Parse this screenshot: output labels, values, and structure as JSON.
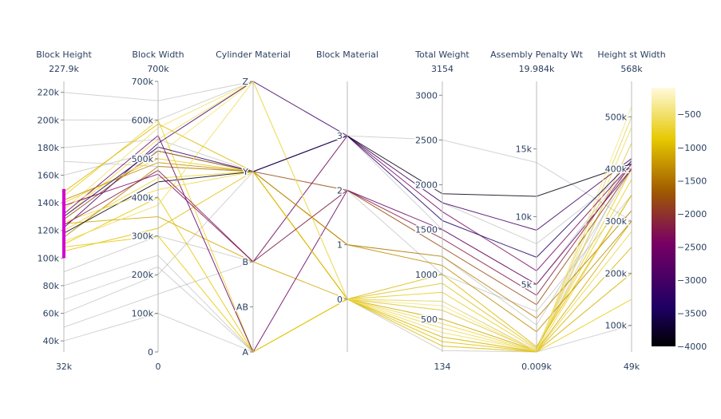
{
  "chart_data": {
    "type": "parallel-coordinates",
    "dimensions": [
      {
        "label": "Block Height",
        "range": [
          32000,
          227900
        ],
        "max_label": "227.9k",
        "min_label": "32k",
        "ticks": [
          40000,
          60000,
          80000,
          100000,
          120000,
          140000,
          160000,
          180000,
          200000,
          220000
        ],
        "tick_labels": [
          "40k",
          "60k",
          "80k",
          "100k",
          "120k",
          "140k",
          "160k",
          "180k",
          "200k",
          "220k"
        ],
        "constraint": [
          100000,
          150000
        ]
      },
      {
        "label": "Block Width",
        "range": [
          0,
          700000
        ],
        "max_label": "700k",
        "min_label": "0",
        "ticks": [
          0,
          100000,
          200000,
          300000,
          400000,
          500000,
          600000,
          700000
        ],
        "tick_labels": [
          "0",
          "100k",
          "200k",
          "300k",
          "400k",
          "500k",
          "600k",
          "700k"
        ]
      },
      {
        "label": "Cylinder Material",
        "range": [
          0,
          3
        ],
        "max_label": "",
        "min_label": "",
        "ticks": [
          0,
          0.5,
          1,
          2,
          3
        ],
        "tick_labels": [
          "A",
          "AB",
          "B",
          "Y",
          "Z"
        ]
      },
      {
        "label": "Block Material",
        "range": [
          -0.97,
          4
        ],
        "max_label": "",
        "min_label": "",
        "ticks": [
          0,
          1,
          2,
          3
        ],
        "tick_labels": [
          "0",
          "1",
          "2",
          "3"
        ]
      },
      {
        "label": "Total Weight",
        "range": [
          134,
          3154
        ],
        "max_label": "3154",
        "min_label": "134",
        "ticks": [
          500,
          1000,
          1500,
          2000,
          2500,
          3000
        ],
        "tick_labels": [
          "500",
          "1000",
          "1500",
          "2000",
          "2500",
          "3000"
        ]
      },
      {
        "label": "Assembly Penalty Wt",
        "range": [
          9,
          19984
        ],
        "max_label": "19.984k",
        "min_label": "0.009k",
        "ticks": [
          5000,
          10000,
          15000
        ],
        "tick_labels": [
          "5k",
          "10k",
          "15k"
        ]
      },
      {
        "label": "Height st Width",
        "range": [
          49000,
          568000
        ],
        "max_label": "568k",
        "min_label": "49k",
        "ticks": [
          100000,
          200000,
          300000,
          400000,
          500000
        ],
        "tick_labels": [
          "100k",
          "200k",
          "300k",
          "400k",
          "500k"
        ]
      }
    ],
    "colorscale": "Electric",
    "color_range": [
      -4000,
      -100
    ],
    "colorbar_ticks": [
      -500,
      -1000,
      -1500,
      -2000,
      -2500,
      -3000,
      -3500,
      -4000
    ],
    "colorbar_tick_labels": [
      "−500",
      "−1000",
      "−1500",
      "−2000",
      "−2500",
      "−3000",
      "−3500",
      "−4000"
    ],
    "unselected_color": "#7f7f7f",
    "constraint_color": "#d400d4",
    "lines": [
      [
        120000,
        450000,
        2,
        0,
        600,
        100,
        350000,
        -700
      ],
      [
        130000,
        550000,
        3,
        0,
        400,
        50,
        450000,
        -600
      ],
      [
        110000,
        400000,
        0,
        0,
        300,
        20,
        250000,
        -900
      ],
      [
        140000,
        500000,
        2,
        0,
        800,
        200,
        400000,
        -800
      ],
      [
        125000,
        350000,
        1,
        0,
        500,
        100,
        300000,
        -1100
      ],
      [
        135000,
        580000,
        3,
        0,
        700,
        50,
        500000,
        -500
      ],
      [
        105000,
        320000,
        2,
        0,
        250,
        30,
        200000,
        -950
      ],
      [
        145000,
        600000,
        0,
        0,
        900,
        300,
        380000,
        -750
      ],
      [
        115000,
        480000,
        2,
        1,
        1200,
        2500,
        320000,
        -1400
      ],
      [
        128000,
        520000,
        2,
        2,
        1300,
        3500,
        400000,
        -1800
      ],
      [
        138000,
        460000,
        1,
        3,
        1700,
        6000,
        410000,
        -2400
      ],
      [
        122000,
        540000,
        3,
        3,
        1800,
        9000,
        420000,
        -3000
      ],
      [
        118000,
        440000,
        2,
        3,
        1900,
        11500,
        410000,
        -3900
      ],
      [
        132000,
        560000,
        0,
        2,
        1500,
        5000,
        400000,
        -2600
      ],
      [
        142000,
        490000,
        2,
        1,
        1100,
        1500,
        300000,
        -1300
      ],
      [
        112000,
        380000,
        3,
        0,
        350,
        80,
        480000,
        -550
      ],
      [
        126000,
        420000,
        2,
        0,
        450,
        60,
        280000,
        -650
      ],
      [
        148000,
        590000,
        2,
        0,
        1000,
        400,
        350000,
        -1000
      ],
      [
        108000,
        300000,
        0,
        0,
        200,
        10,
        150000,
        -850
      ],
      [
        136000,
        510000,
        3,
        0,
        650,
        40,
        520000,
        -450
      ],
      [
        124000,
        470000,
        1,
        2,
        1400,
        4200,
        410000,
        -2200
      ],
      [
        130000,
        530000,
        2,
        3,
        1600,
        7000,
        415000,
        -3400
      ],
      [
        60000,
        200000,
        2,
        3,
        1800,
        8000,
        400000,
        -2000
      ],
      [
        50000,
        150000,
        1,
        3,
        1500,
        5000,
        410000,
        -2500
      ],
      [
        80000,
        250000,
        0,
        0,
        300,
        50,
        200000,
        -800
      ],
      [
        200000,
        600000,
        3,
        0,
        700,
        100,
        500000,
        -600
      ],
      [
        180000,
        550000,
        2,
        1,
        1200,
        2000,
        400000,
        -1200
      ],
      [
        220000,
        650000,
        3,
        0,
        900,
        300,
        450000,
        -700
      ],
      [
        40000,
        100000,
        0,
        0,
        150,
        10,
        100000,
        -900
      ],
      [
        170000,
        480000,
        2,
        3,
        2500,
        14000,
        300000,
        -2800
      ],
      [
        90000,
        300000,
        1,
        2,
        1000,
        3000,
        350000,
        -1700
      ],
      [
        160000,
        520000,
        2,
        0,
        600,
        100,
        420000,
        -500
      ],
      [
        70000,
        220000,
        0,
        0,
        200,
        20,
        250000,
        -950
      ]
    ]
  }
}
